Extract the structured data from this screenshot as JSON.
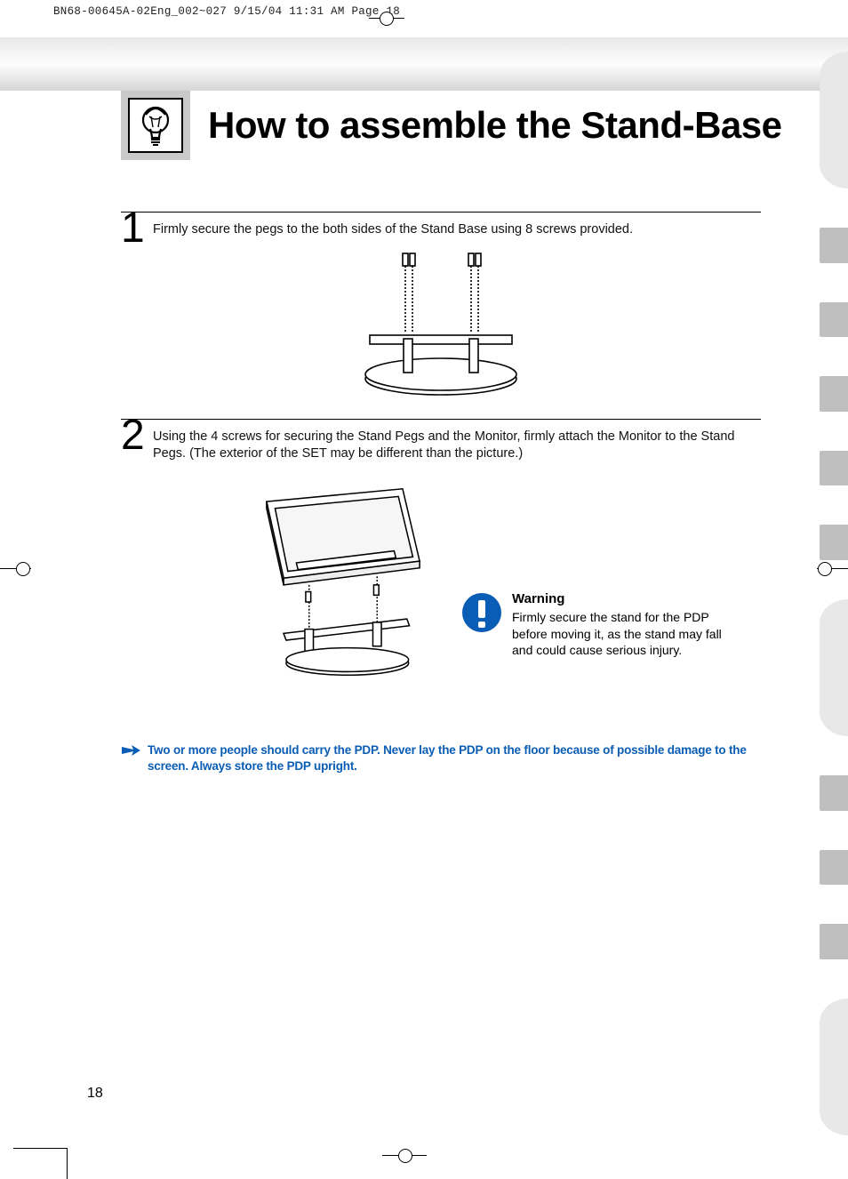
{
  "print_header": "BN68-00645A-02Eng_002~027  9/15/04  11:31 AM  Page 18",
  "title": "How to assemble the Stand-Base",
  "steps": [
    {
      "num": "1",
      "text": "Firmly secure the pegs to the both sides of the Stand Base using 8 screws provided."
    },
    {
      "num": "2",
      "text": "Using the 4 screws for securing the Stand Pegs and the Monitor, firmly attach the Monitor to the Stand Pegs. (The exterior of the SET may be different than the picture.)"
    }
  ],
  "warning": {
    "title": "Warning",
    "body": "Firmly secure the stand for the PDP before moving it, as the stand may fall and could cause serious injury."
  },
  "note": "Two or more people should carry the PDP. Never lay the PDP on the floor because of possible damage to the screen. Always store the PDP upright.",
  "page_number": "18",
  "colors": {
    "accent_blue": "#0a5db5",
    "tab_gray": "#bfbfbf",
    "tab_light": "#e8e8e8",
    "icon_bg": "#c9c9c9"
  },
  "side_tabs": [
    {
      "type": "large",
      "color": "#e8e8e8"
    },
    {
      "type": "small",
      "color": "#bfbfbf"
    },
    {
      "type": "small",
      "color": "#bfbfbf"
    },
    {
      "type": "small",
      "color": "#bfbfbf"
    },
    {
      "type": "small",
      "color": "#bfbfbf"
    },
    {
      "type": "small",
      "color": "#bfbfbf"
    },
    {
      "type": "large",
      "color": "#e8e8e8"
    },
    {
      "type": "small",
      "color": "#bfbfbf"
    },
    {
      "type": "small",
      "color": "#bfbfbf"
    },
    {
      "type": "small",
      "color": "#bfbfbf"
    },
    {
      "type": "large",
      "color": "#e8e8e8"
    }
  ]
}
